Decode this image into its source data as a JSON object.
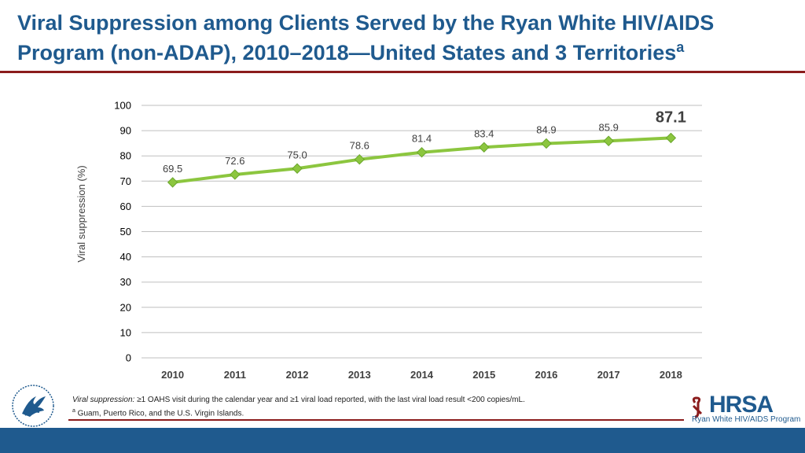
{
  "title": {
    "line1": "Viral Suppression among Clients Served by the Ryan White HIV/AIDS",
    "line2": "Program (non-ADAP), 2010–2018—United States and 3 Territories",
    "sup": "a"
  },
  "chart_data": {
    "type": "line",
    "title": "",
    "xlabel": "",
    "ylabel": "Viral suppression (%)",
    "categories": [
      "2010",
      "2011",
      "2012",
      "2013",
      "2014",
      "2015",
      "2016",
      "2017",
      "2018"
    ],
    "values": [
      69.5,
      72.6,
      75.0,
      78.6,
      81.4,
      83.4,
      84.9,
      85.9,
      87.1
    ],
    "value_labels": [
      "69.5",
      "72.6",
      "75.0",
      "78.6",
      "81.4",
      "83.4",
      "84.9",
      "85.9",
      "87.1"
    ],
    "ylim": [
      0,
      100
    ],
    "yticks": [
      0,
      10,
      20,
      30,
      40,
      50,
      60,
      70,
      80,
      90,
      100
    ],
    "grid": true,
    "colors": {
      "line": "#8cc63f",
      "marker": "#8cc63f",
      "grid": "#bfbfbf",
      "text": "#404040"
    }
  },
  "footnotes": {
    "def_term": "Viral suppression:",
    "def_text": " ≥1 OAHS visit during the calendar year and ≥1 viral load reported, with the last viral load result <200 copies/mL.",
    "note_mark": "a",
    "note_text": " Guam, Puerto Rico, and the U.S. Virgin Islands."
  },
  "logo": {
    "name": "HRSA",
    "subtitle": "Ryan White HIV/AIDS Program"
  }
}
